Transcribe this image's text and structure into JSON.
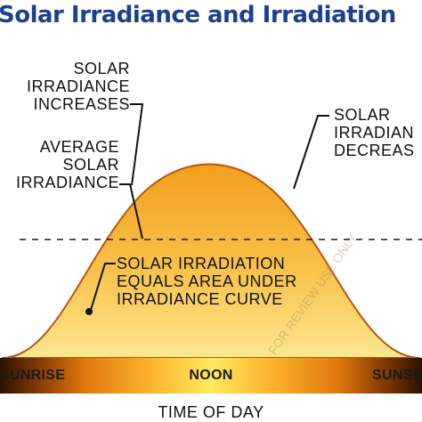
{
  "title": "Solar Irradiance and Irradiation",
  "labels": {
    "irradiance_increases": [
      "SOLAR",
      "IRRADIANCE",
      "INCREASES"
    ],
    "irradiance_decreases": [
      "SOLAR",
      "IRRADIAN",
      "DECREAS"
    ],
    "average_irradiance": [
      "AVERAGE",
      "SOLAR",
      "IRRADIANCE"
    ],
    "irradiation": [
      "SOLAR IRRADIATION",
      "EQUALS AREA UNDER",
      "IRRADIANCE CURVE"
    ]
  },
  "time_bar": {
    "left": "SUNRISE",
    "center": "NOON",
    "right": "SUNSE"
  },
  "axis_label": "TIME OF DAY",
  "watermark": "FOR REVIEW USE ONLY",
  "colors": {
    "title": "#1d3f8f",
    "curve_top": "#f4a31d",
    "curve_bottom": "#fde48a",
    "bar_dark": "#2b1300",
    "bar_light": "#ffe85c"
  }
}
